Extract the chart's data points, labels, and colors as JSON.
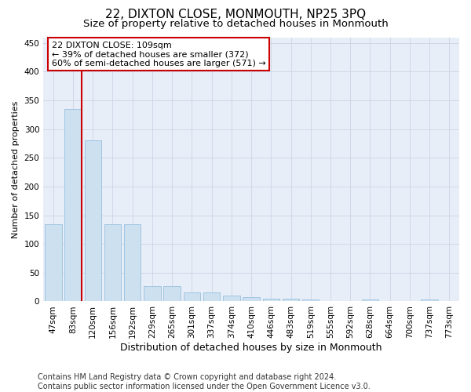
{
  "title": "22, DIXTON CLOSE, MONMOUTH, NP25 3PQ",
  "subtitle": "Size of property relative to detached houses in Monmouth",
  "xlabel": "Distribution of detached houses by size in Monmouth",
  "ylabel": "Number of detached properties",
  "categories": [
    "47sqm",
    "83sqm",
    "120sqm",
    "156sqm",
    "192sqm",
    "229sqm",
    "265sqm",
    "301sqm",
    "337sqm",
    "374sqm",
    "410sqm",
    "446sqm",
    "483sqm",
    "519sqm",
    "555sqm",
    "592sqm",
    "628sqm",
    "664sqm",
    "700sqm",
    "737sqm",
    "773sqm"
  ],
  "values": [
    135,
    335,
    280,
    135,
    135,
    26,
    26,
    15,
    15,
    10,
    7,
    5,
    5,
    3,
    0,
    0,
    3,
    0,
    0,
    3,
    0
  ],
  "bar_color": "#cce0f0",
  "bar_edge_color": "#a0c4e0",
  "vline_color": "#cc0000",
  "annotation_text": "22 DIXTON CLOSE: 109sqm\n← 39% of detached houses are smaller (372)\n60% of semi-detached houses are larger (571) →",
  "annotation_box_color": "#ffffff",
  "annotation_box_edge": "#cc0000",
  "ylim": [
    0,
    460
  ],
  "yticks": [
    0,
    50,
    100,
    150,
    200,
    250,
    300,
    350,
    400,
    450
  ],
  "grid_color": "#d0d8e8",
  "background_color": "#e8eef8",
  "footer_text": "Contains HM Land Registry data © Crown copyright and database right 2024.\nContains public sector information licensed under the Open Government Licence v3.0.",
  "title_fontsize": 11,
  "subtitle_fontsize": 9.5,
  "xlabel_fontsize": 9,
  "ylabel_fontsize": 8,
  "tick_fontsize": 7.5,
  "annotation_fontsize": 8,
  "footer_fontsize": 7
}
